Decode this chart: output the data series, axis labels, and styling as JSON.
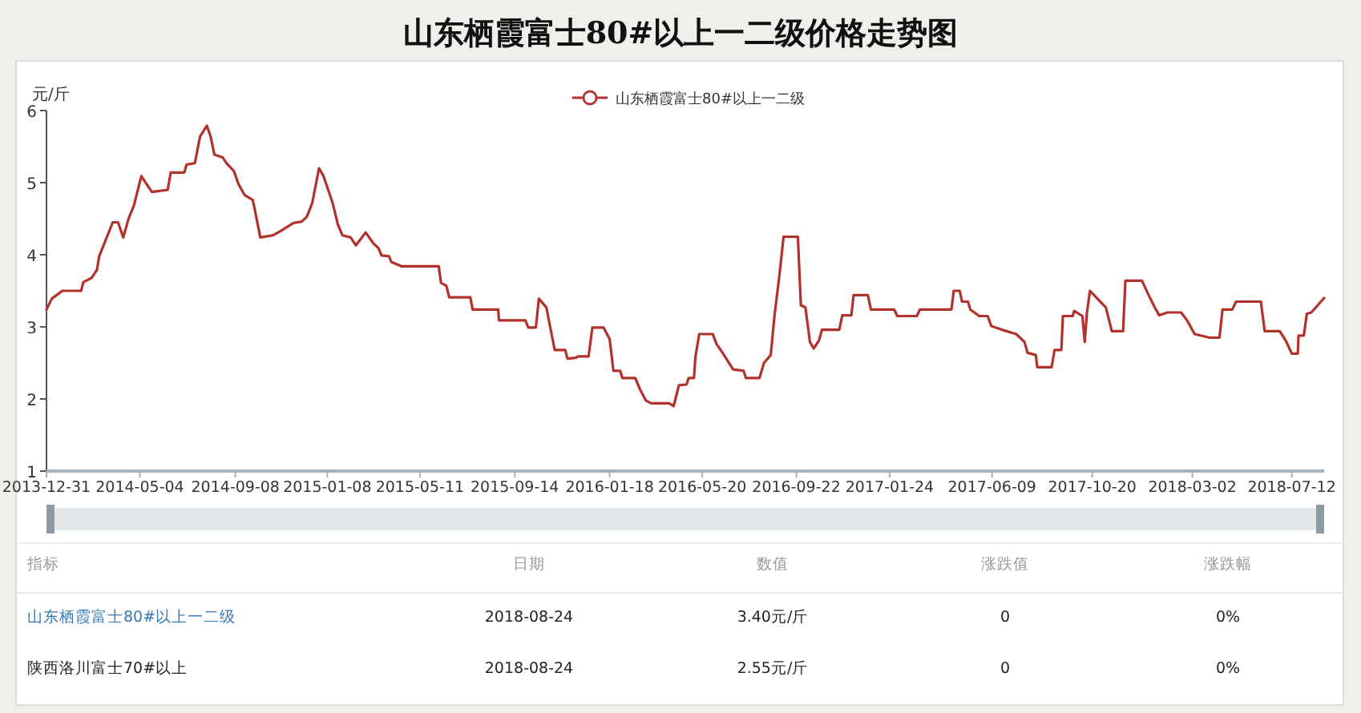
{
  "chart_data": {
    "type": "line",
    "title": "山东栖霞富士80#以上一二级价格走势图",
    "ylabel": "元/斤",
    "x": [
      "2013-12-31",
      "2014-01-07",
      "2014-01-21",
      "2014-02-15",
      "2014-02-18",
      "2014-03-01",
      "2014-03-08",
      "2014-03-11",
      "2014-03-29",
      "2014-04-05",
      "2014-04-12",
      "2014-04-19",
      "2014-04-26",
      "2014-05-06",
      "2014-05-13",
      "2014-05-20",
      "2014-06-10",
      "2014-06-14",
      "2014-07-02",
      "2014-07-05",
      "2014-07-16",
      "2014-07-23",
      "2014-08-01",
      "2014-08-06",
      "2014-08-11",
      "2014-08-22",
      "2014-08-27",
      "2014-09-06",
      "2014-09-12",
      "2014-09-20",
      "2014-10-01",
      "2014-10-04",
      "2014-10-11",
      "2014-10-28",
      "2014-11-07",
      "2014-11-24",
      "2014-12-05",
      "2014-12-12",
      "2014-12-19",
      "2014-12-28",
      "2015-01-03",
      "2015-01-15",
      "2015-01-22",
      "2015-01-28",
      "2015-02-08",
      "2015-02-15",
      "2015-02-28",
      "2015-03-10",
      "2015-03-17",
      "2015-03-21",
      "2015-03-31",
      "2015-04-03",
      "2015-04-17",
      "2015-06-05",
      "2015-06-08",
      "2015-06-15",
      "2015-06-19",
      "2015-07-17",
      "2015-07-20",
      "2015-08-23",
      "2015-08-24",
      "2015-09-28",
      "2015-10-02",
      "2015-10-12",
      "2015-10-16",
      "2015-10-26",
      "2015-10-30",
      "2015-11-06",
      "2015-11-20",
      "2015-11-23",
      "2015-12-04",
      "2015-12-07",
      "2015-12-21",
      "2015-12-26",
      "2016-01-10",
      "2016-01-18",
      "2016-01-23",
      "2016-02-01",
      "2016-02-04",
      "2016-02-21",
      "2016-02-27",
      "2016-03-06",
      "2016-03-13",
      "2016-04-06",
      "2016-04-12",
      "2016-04-19",
      "2016-04-29",
      "2016-05-02",
      "2016-05-09",
      "2016-05-11",
      "2016-05-16",
      "2016-06-03",
      "2016-06-08",
      "2016-06-16",
      "2016-06-30",
      "2016-07-14",
      "2016-07-17",
      "2016-08-04",
      "2016-08-10",
      "2016-08-19",
      "2016-08-24",
      "2016-08-31",
      "2016-09-05",
      "2016-09-24",
      "2016-09-28",
      "2016-10-04",
      "2016-10-10",
      "2016-10-15",
      "2016-10-22",
      "2016-10-26",
      "2016-11-18",
      "2016-11-22",
      "2016-12-04",
      "2016-12-07",
      "2016-12-26",
      "2016-12-30",
      "2017-01-30",
      "2017-02-03",
      "2017-03-01",
      "2017-03-05",
      "2017-04-16",
      "2017-04-19",
      "2017-04-27",
      "2017-04-30",
      "2017-05-08",
      "2017-05-11",
      "2017-05-23",
      "2017-06-03",
      "2017-06-08",
      "2017-06-22",
      "2017-07-11",
      "2017-07-22",
      "2017-07-26",
      "2017-08-06",
      "2017-08-08",
      "2017-08-27",
      "2017-08-31",
      "2017-09-09",
      "2017-09-11",
      "2017-09-24",
      "2017-09-26",
      "2017-10-07",
      "2017-10-10",
      "2017-10-13",
      "2017-10-17",
      "2017-10-27",
      "2017-11-07",
      "2017-11-15",
      "2017-11-30",
      "2017-12-03",
      "2017-12-25",
      "2018-01-02",
      "2018-01-11",
      "2018-01-17",
      "2018-01-28",
      "2018-02-15",
      "2018-02-23",
      "2018-03-05",
      "2018-03-25",
      "2018-04-07",
      "2018-04-11",
      "2018-04-24",
      "2018-04-29",
      "2018-06-01",
      "2018-06-06",
      "2018-06-26",
      "2018-07-04",
      "2018-07-12",
      "2018-07-20",
      "2018-07-21",
      "2018-07-28",
      "2018-08-01",
      "2018-08-07",
      "2018-08-24"
    ],
    "series": [
      {
        "name": "山东栖霞富士80#以上一二级",
        "color": "#b2312a",
        "values": [
          3.24,
          3.39,
          3.5,
          3.5,
          3.62,
          3.68,
          3.79,
          3.98,
          4.45,
          4.45,
          4.24,
          4.5,
          4.68,
          5.09,
          4.98,
          4.87,
          4.9,
          5.14,
          5.14,
          5.25,
          5.27,
          5.64,
          5.79,
          5.64,
          5.39,
          5.35,
          5.27,
          5.16,
          4.98,
          4.83,
          4.76,
          4.61,
          4.24,
          4.27,
          4.33,
          4.44,
          4.46,
          4.53,
          4.72,
          5.2,
          5.09,
          4.72,
          4.42,
          4.27,
          4.24,
          4.13,
          4.31,
          4.16,
          4.09,
          3.99,
          3.98,
          3.9,
          3.84,
          3.84,
          3.61,
          3.57,
          3.41,
          3.41,
          3.24,
          3.24,
          3.09,
          3.09,
          2.99,
          2.99,
          3.39,
          3.27,
          3.05,
          2.68,
          2.68,
          2.56,
          2.57,
          2.59,
          2.59,
          2.99,
          2.99,
          2.83,
          2.39,
          2.39,
          2.29,
          2.29,
          2.14,
          1.98,
          1.94,
          1.94,
          1.9,
          2.19,
          2.2,
          2.29,
          2.29,
          2.59,
          2.9,
          2.9,
          2.76,
          2.64,
          2.41,
          2.39,
          2.29,
          2.29,
          2.5,
          2.61,
          3.16,
          3.76,
          4.25,
          4.25,
          3.3,
          3.27,
          2.79,
          2.7,
          2.81,
          2.96,
          2.96,
          3.16,
          3.16,
          3.44,
          3.44,
          3.24,
          3.24,
          3.15,
          3.15,
          3.24,
          3.24,
          3.5,
          3.5,
          3.35,
          3.35,
          3.24,
          3.15,
          3.15,
          3.01,
          2.96,
          2.9,
          2.79,
          2.64,
          2.61,
          2.44,
          2.44,
          2.68,
          2.68,
          3.15,
          3.15,
          3.22,
          3.15,
          2.79,
          3.2,
          3.5,
          3.39,
          3.27,
          2.94,
          2.94,
          3.64,
          3.64,
          3.46,
          3.27,
          3.16,
          3.2,
          3.2,
          3.09,
          2.9,
          2.85,
          2.85,
          3.24,
          3.24,
          3.35,
          3.35,
          2.94,
          2.94,
          2.81,
          2.63,
          2.63,
          2.88,
          2.88,
          3.18,
          3.2,
          3.4
        ]
      }
    ],
    "xlim": [
      "2013-12-31",
      "2018-08-24"
    ],
    "xticks": [
      "2013-12-31",
      "2014-05-04",
      "2014-09-08",
      "2015-01-08",
      "2015-05-11",
      "2015-09-14",
      "2016-01-18",
      "2016-05-20",
      "2016-09-22",
      "2017-01-24",
      "2017-06-09",
      "2017-10-20",
      "2018-03-02",
      "2018-07-12"
    ],
    "ylim": [
      1,
      6
    ],
    "yticks": [
      1,
      2,
      3,
      4,
      5,
      6
    ],
    "grid": false,
    "legend": "top",
    "annotations": [
      "指标",
      "日期",
      "数值",
      "涨跌值",
      "涨跌幅",
      "山东栖霞富士80#以上一二级",
      "2018-08-24",
      "3.40元/斤",
      "0",
      "0%",
      "陕西洛川富士70#以上",
      "2018-08-24",
      "2.55元/斤",
      "0",
      "0%"
    ]
  }
}
